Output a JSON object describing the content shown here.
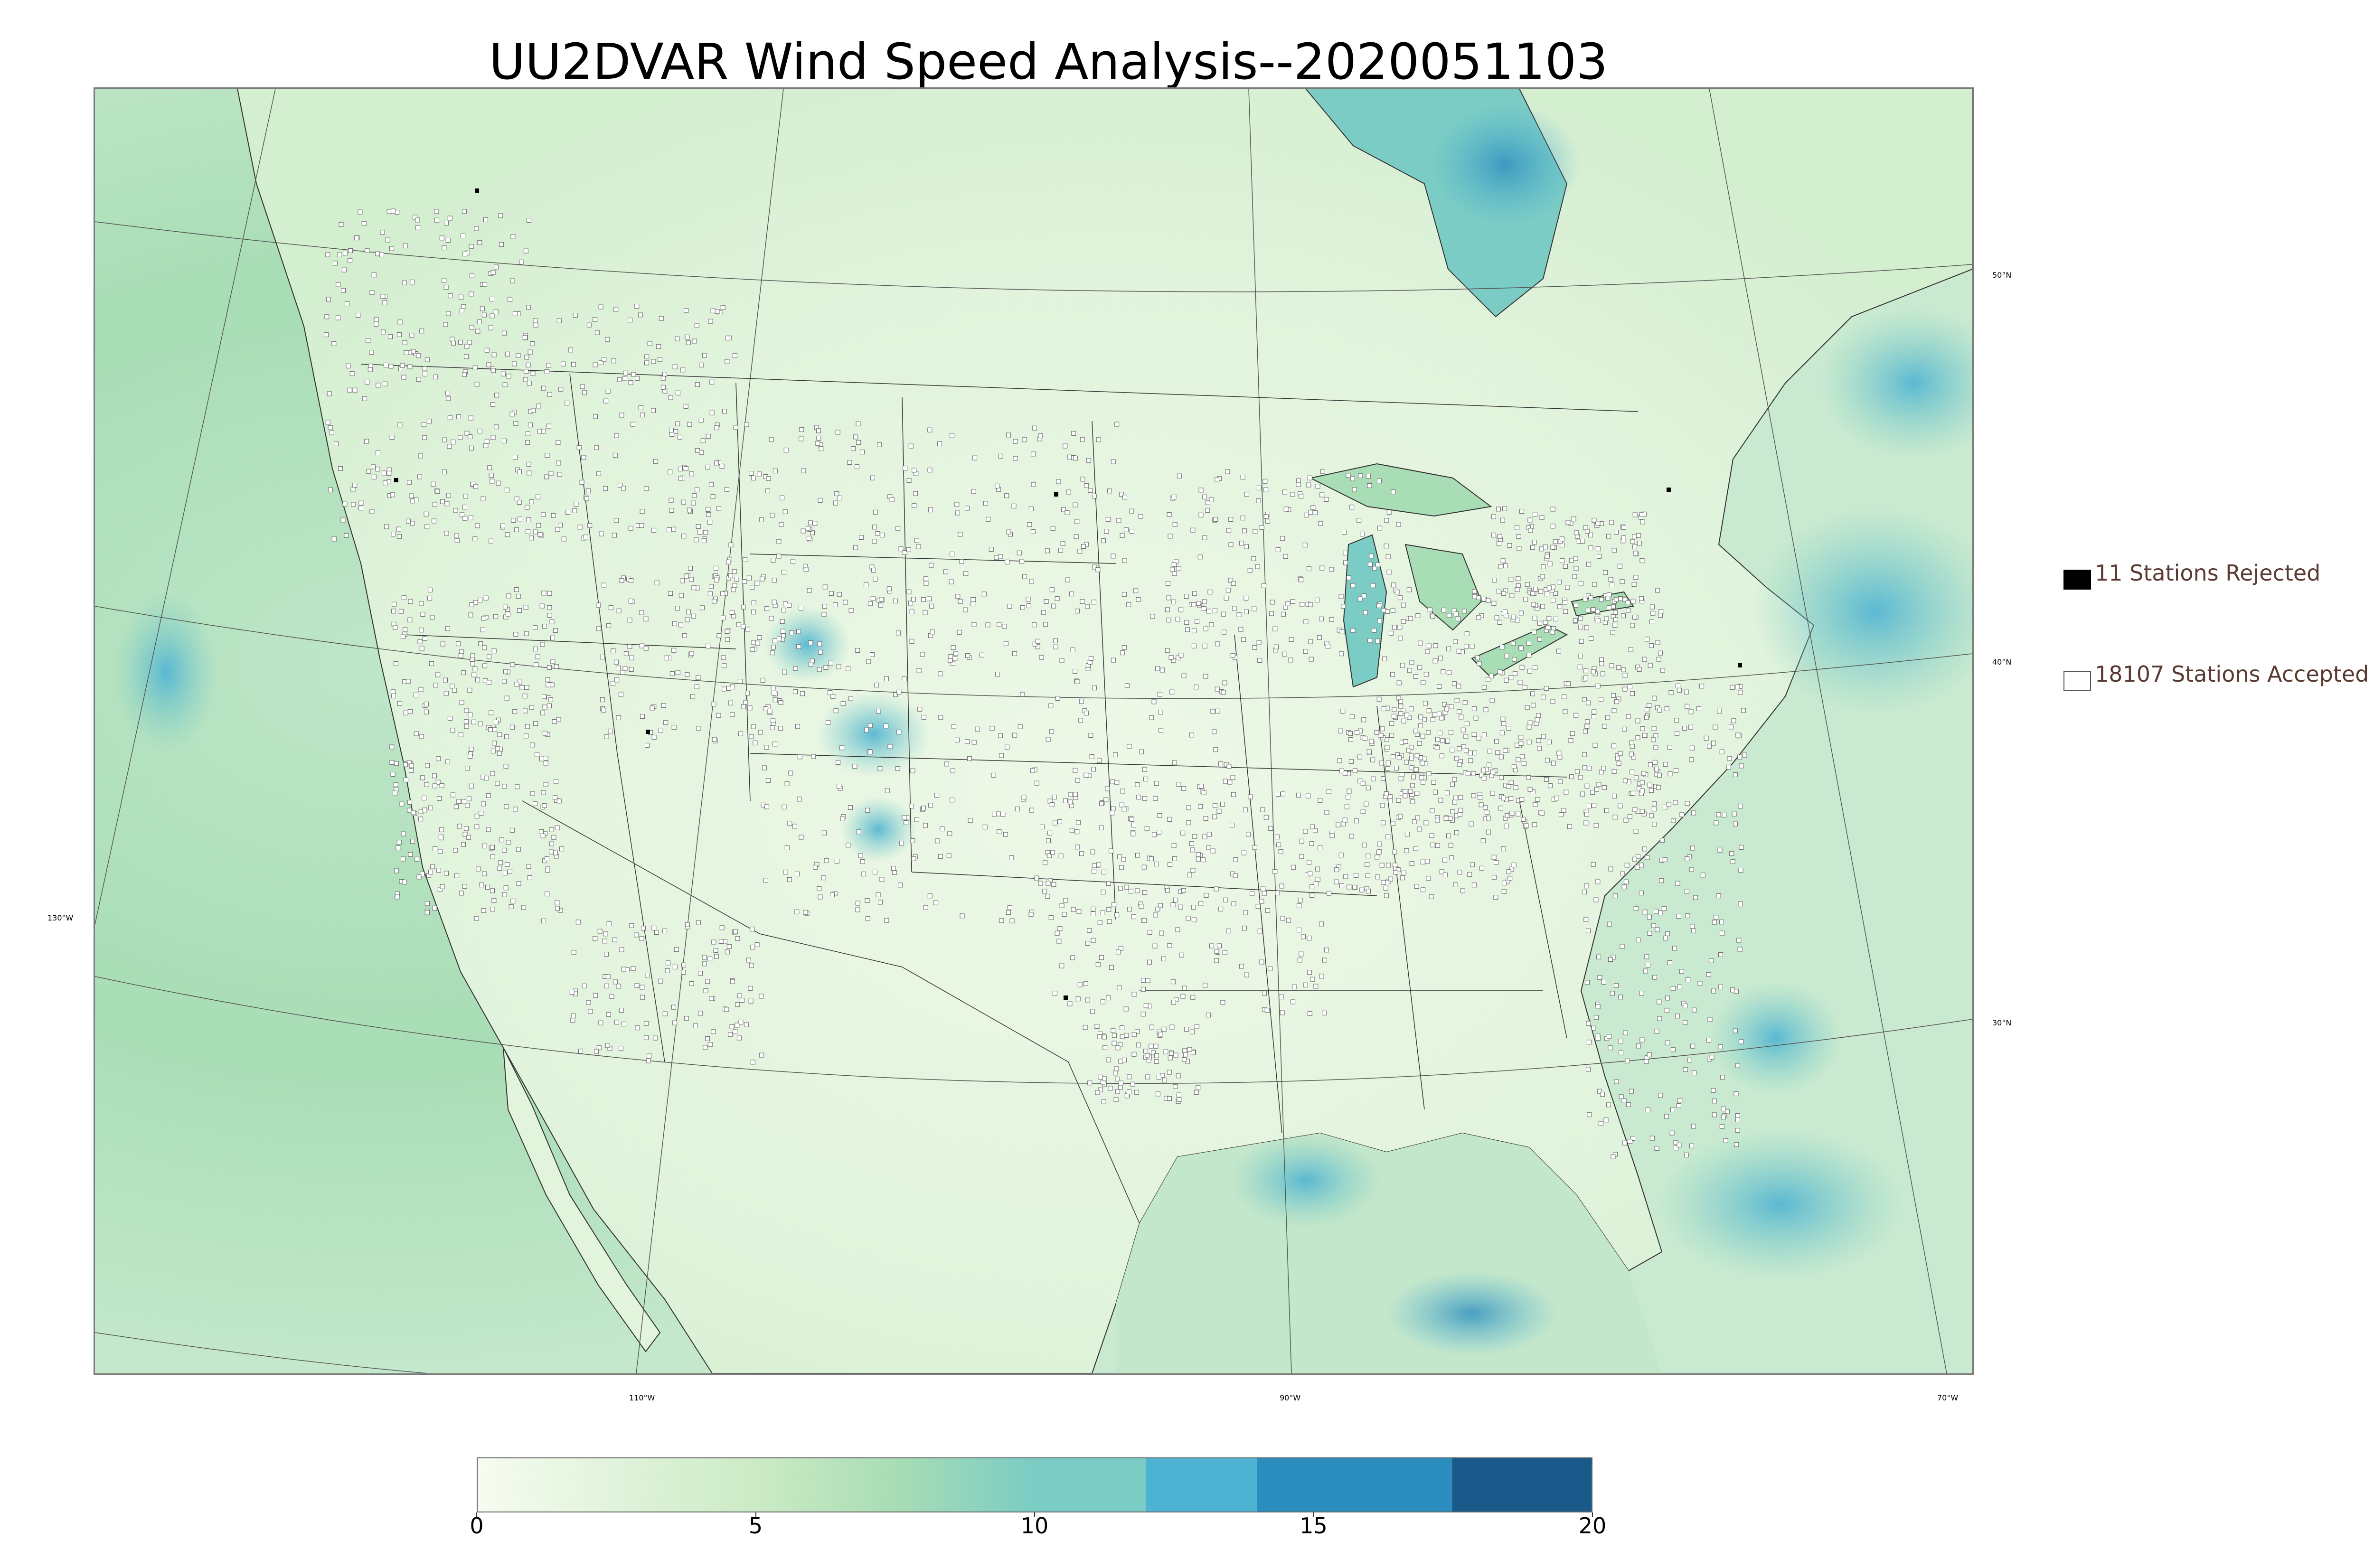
{
  "title": "UU2DVAR Wind Speed Analysis--2020051103",
  "map": {
    "latitude_labels": [
      "50°N",
      "40°N",
      "30°N"
    ],
    "longitude_labels": [
      "130°W",
      "110°W",
      "90°W",
      "70°W"
    ]
  },
  "legend": {
    "rejected_label": "11 Stations Rejected",
    "accepted_label": "18107 Stations Accepted",
    "rejected_color": "#000000",
    "accepted_color": "#ffffff"
  },
  "colorbar": {
    "min": 0,
    "max": 20,
    "tick_labels": [
      "0",
      "5",
      "10",
      "15",
      "20"
    ],
    "tick_values": [
      0,
      5,
      10,
      15,
      20
    ],
    "stops": [
      {
        "value": 0,
        "color": "#f7fcf0"
      },
      {
        "value": 2.5,
        "color": "#e0f3db"
      },
      {
        "value": 5,
        "color": "#ccebc5"
      },
      {
        "value": 7.5,
        "color": "#a8ddb5"
      },
      {
        "value": 10,
        "color": "#7bccc4"
      },
      {
        "value": 12,
        "color": "#4eb3d3"
      },
      {
        "value": 14,
        "color": "#2b8cbe"
      },
      {
        "value": 17.5,
        "color": "#1a5a8a"
      },
      {
        "value": 20,
        "color": "#1a5a8a"
      }
    ]
  }
}
